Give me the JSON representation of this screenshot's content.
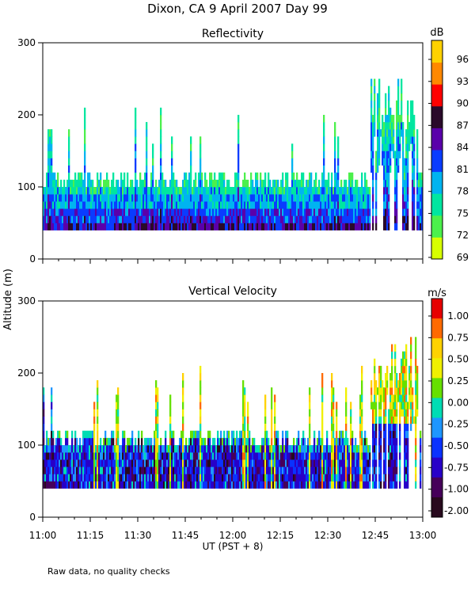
{
  "figure_title": "Dixon, CA   9 April 2007   Day   99",
  "footer_note": "Raw data, no quality checks",
  "chart_data": [
    {
      "type": "heatmap",
      "title": "Reflectivity",
      "ylabel": "Altitude (m)",
      "xlabel": "UT   (PST + 8)",
      "x_range": [
        "11:00",
        "13:00"
      ],
      "ylim": [
        0,
        300
      ],
      "yticks": [
        0,
        100,
        200,
        300
      ],
      "xticks": [
        "11:00",
        "11:15",
        "11:30",
        "11:45",
        "12:00",
        "12:15",
        "12:30",
        "12:45",
        "13:00"
      ],
      "colorbar": {
        "unit": "dB",
        "tick_labels": [
          "69",
          "72",
          "75",
          "78",
          "81",
          "84",
          "87",
          "90",
          "93",
          "96"
        ],
        "colors": [
          "#d7ff00",
          "#4cf04c",
          "#00e6a0",
          "#00b4f0",
          "#0a3cff",
          "#5a00aa",
          "#2a0a2a",
          "#ff0000",
          "#ff8800",
          "#ffd200"
        ]
      },
      "data_summary": {
        "boundary_layer_base_m": 40,
        "echo_top_m": 120,
        "echo_top_range_m": [
          100,
          140
        ],
        "occasional_plumes_to_m": 220,
        "late_echo_tops_m": [
          200,
          260
        ],
        "late_period_start": "12:43"
      }
    },
    {
      "type": "heatmap",
      "title": "Vertical Velocity",
      "ylabel": "Altitude (m)",
      "xlabel": "UT   (PST + 8)",
      "x_range": [
        "11:00",
        "13:00"
      ],
      "ylim": [
        0,
        300
      ],
      "yticks": [
        0,
        100,
        200,
        300
      ],
      "xticks": [
        "11:00",
        "11:15",
        "11:30",
        "11:45",
        "12:00",
        "12:15",
        "12:30",
        "12:45",
        "13:00"
      ],
      "colorbar": {
        "unit": "m/s",
        "tick_labels": [
          "1.00",
          "0.75",
          "0.50",
          "0.25",
          "0.00",
          "-0.25",
          "-0.50",
          "-0.75",
          "-1.00",
          "-2.00"
        ],
        "colors": [
          "#e60000",
          "#ff6a00",
          "#ffd200",
          "#f0f000",
          "#66e000",
          "#00dcb4",
          "#1e96ff",
          "#0a32ff",
          "#2800c8",
          "#46005a",
          "#280a1e"
        ]
      },
      "data_summary": {
        "boundary_layer_base_m": 40,
        "echo_top_m": 120,
        "dominant_velocity_ms": -0.75,
        "updraft_plumes_ms": [
          0.25,
          1.0
        ],
        "late_echo_tops_m": [
          200,
          260
        ],
        "late_period_start": "12:43"
      }
    }
  ]
}
